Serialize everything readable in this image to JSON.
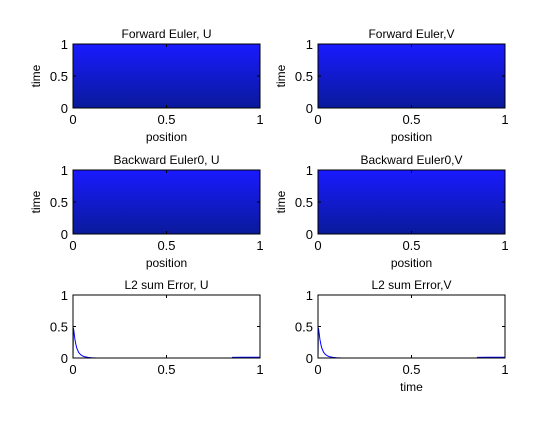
{
  "chart_data": [
    {
      "type": "heatmap",
      "title": "Forward Euler, U",
      "xlabel": "position",
      "ylabel": "time",
      "xlim": [
        0,
        1
      ],
      "ylim": [
        0,
        1
      ],
      "xticks": [
        "0",
        "0.5",
        "1"
      ],
      "yticks": [
        "0",
        "0.5",
        "1"
      ],
      "colors": {
        "top": "#1a1aff",
        "bottom": "#0a1a9a"
      }
    },
    {
      "type": "heatmap",
      "title": "Forward Euler,V",
      "xlabel": "position",
      "ylabel": "time",
      "xlim": [
        0,
        1
      ],
      "ylim": [
        0,
        1
      ],
      "xticks": [
        "0",
        "0.5",
        "1"
      ],
      "yticks": [
        "0",
        "0.5",
        "1"
      ],
      "colors": {
        "top": "#1a1aff",
        "bottom": "#0a1a9a"
      }
    },
    {
      "type": "heatmap",
      "title": "Backward Euler0, U",
      "xlabel": "position",
      "ylabel": "time",
      "xlim": [
        0,
        1
      ],
      "ylim": [
        0,
        1
      ],
      "xticks": [
        "0",
        "0.5",
        "1"
      ],
      "yticks": [
        "0",
        "0.5",
        "1"
      ],
      "colors": {
        "top": "#1a1aff",
        "bottom": "#0a1a9a"
      }
    },
    {
      "type": "heatmap",
      "title": "Backward Euler0,V",
      "xlabel": "position",
      "ylabel": "time",
      "xlim": [
        0,
        1
      ],
      "ylim": [
        0,
        1
      ],
      "xticks": [
        "0",
        "0.5",
        "1"
      ],
      "yticks": [
        "0",
        "0.5",
        "1"
      ],
      "colors": {
        "top": "#1a1aff",
        "bottom": "#0a1a9a"
      }
    },
    {
      "type": "line",
      "title": "L2 sum Error, U",
      "xlabel": "",
      "ylabel": "",
      "xlim": [
        0,
        1
      ],
      "ylim": [
        0,
        1
      ],
      "xticks": [
        "0",
        "0.5",
        "1"
      ],
      "yticks": [
        "0",
        "0.5",
        "1"
      ],
      "line_color": "#0000ff",
      "series": [
        {
          "x": [
            0,
            0.002,
            0.005,
            0.01,
            0.015,
            0.02,
            0.03,
            0.04,
            0.05,
            0.06,
            0.08,
            0.1,
            0.12,
            0.15,
            0.2,
            0.3,
            0.5,
            0.7,
            0.85
          ],
          "y": [
            0,
            0.48,
            0.42,
            0.3,
            0.22,
            0.16,
            0.09,
            0.055,
            0.035,
            0.022,
            0.01,
            0.005,
            0.002,
            0,
            0,
            0,
            0,
            0,
            0
          ]
        },
        {
          "x": [
            0.85,
            0.9,
            0.95,
            1.0
          ],
          "y": [
            0.01,
            0.012,
            0.012,
            0.012
          ]
        }
      ]
    },
    {
      "type": "line",
      "title": "L2 sum Error,V",
      "xlabel": "time",
      "ylabel": "",
      "xlim": [
        0,
        1
      ],
      "ylim": [
        0,
        1
      ],
      "xticks": [
        "0",
        "0.5",
        "1"
      ],
      "yticks": [
        "0",
        "0.5",
        "1"
      ],
      "line_color": "#0000ff",
      "series": [
        {
          "x": [
            0,
            0.002,
            0.005,
            0.01,
            0.015,
            0.02,
            0.03,
            0.04,
            0.05,
            0.06,
            0.08,
            0.1,
            0.12,
            0.15,
            0.2,
            0.3,
            0.5,
            0.7,
            0.85
          ],
          "y": [
            0,
            0.48,
            0.42,
            0.3,
            0.22,
            0.16,
            0.09,
            0.055,
            0.035,
            0.022,
            0.01,
            0.005,
            0.002,
            0,
            0,
            0,
            0,
            0,
            0
          ]
        },
        {
          "x": [
            0.85,
            0.9,
            0.95,
            1.0
          ],
          "y": [
            0.01,
            0.012,
            0.012,
            0.012
          ]
        }
      ]
    }
  ]
}
